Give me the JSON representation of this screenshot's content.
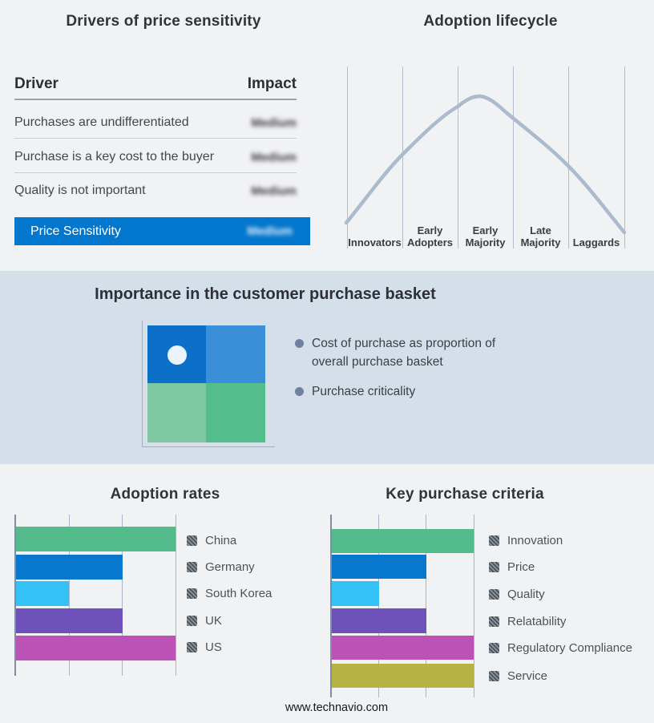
{
  "footer": {
    "url": "www.technavio.com"
  },
  "chart_data": [
    {
      "type": "table",
      "title": "Drivers of price sensitivity",
      "columns": [
        "Driver",
        "Impact"
      ],
      "rows": [
        [
          "Purchases are undifferentiated",
          "Medium"
        ],
        [
          "Purchase is a key cost to the buyer",
          "Medium"
        ],
        [
          "Quality is not important",
          "Medium"
        ]
      ],
      "highlight_row": [
        "Price Sensitivity",
        "Medium"
      ],
      "highlight_color": "#0277cd",
      "note": "impact values are shown blurred in the source image"
    },
    {
      "type": "line",
      "title": "Adoption lifecycle",
      "categories": [
        "Innovators",
        "Early Adopters",
        "Early Majority",
        "Late Majority",
        "Laggards"
      ],
      "shape": "bell curve rising from Innovators, peaking at Early Majority, falling to Laggards",
      "curve_color": "#abbacd",
      "gridlines": true,
      "legend_position": "none"
    },
    {
      "type": "heatmap",
      "title": "Importance in the customer purchase basket",
      "grid_size": "2x2",
      "cell_colors": [
        [
          "#0c70c8",
          "#3b8fd9"
        ],
        [
          "#7fc7a0",
          "#53bd8b"
        ]
      ],
      "marker": "white dot in top-left cell",
      "bullets": [
        "Cost of purchase as proportion of overall purchase basket",
        "Purchase criticality"
      ]
    },
    {
      "type": "bar",
      "title": "Adoption rates",
      "orientation": "horizontal",
      "categories": [
        "China",
        "Germany",
        "South Korea",
        "UK",
        "US"
      ],
      "values": [
        3,
        2,
        1,
        2,
        3
      ],
      "xlim": [
        0,
        3
      ],
      "colors": [
        "#54bb8d",
        "#0877ce",
        "#33c1f6",
        "#6f52b9",
        "#bc52b6"
      ],
      "tick_labels_visible": false,
      "gridlines": true,
      "legend_position": "right"
    },
    {
      "type": "bar",
      "title": "Key purchase criteria",
      "orientation": "horizontal",
      "categories": [
        "Innovation",
        "Price",
        "Quality",
        "Relatability",
        "Regulatory Compliance",
        "Service"
      ],
      "values": [
        3,
        2,
        1,
        2,
        3,
        3
      ],
      "xlim": [
        0,
        3
      ],
      "colors": [
        "#54bb8d",
        "#0877ce",
        "#33c1f6",
        "#6f52b9",
        "#bc52b6",
        "#b6b244"
      ],
      "tick_labels_visible": false,
      "gridlines": true,
      "legend_position": "right"
    }
  ]
}
